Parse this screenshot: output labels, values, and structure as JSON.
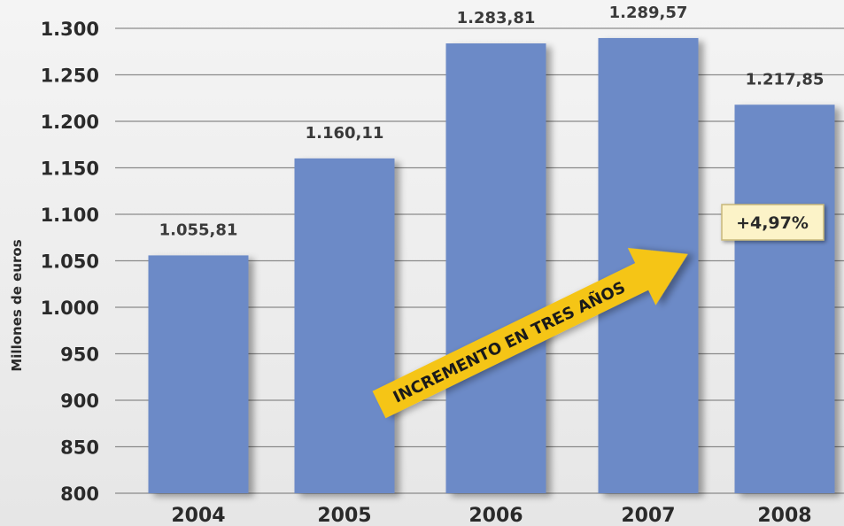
{
  "chart_data": {
    "type": "bar",
    "categories": [
      "2004",
      "2005",
      "2006",
      "2007",
      "2008"
    ],
    "values": [
      1055.81,
      1160.11,
      1283.81,
      1289.57,
      1217.85
    ],
    "data_labels": [
      "1.055,81",
      "1.160,11",
      "1.283,81",
      "1.289,57",
      "1.217,85"
    ],
    "ylabel": "Millones de euros",
    "ylim": [
      800,
      1300
    ],
    "yticks": [
      800,
      850,
      900,
      950,
      1000,
      1050,
      1100,
      1150,
      1200,
      1250,
      1300
    ],
    "ytick_labels": [
      "800",
      "850",
      "900",
      "950",
      "1.000",
      "1.050",
      "1.100",
      "1.150",
      "1.200",
      "1.250",
      "1.300"
    ],
    "grid": true,
    "bar_color": "#6c8ac7",
    "annotations": {
      "arrow_text": "INCREMENTO EN TRES AÑOS",
      "arrow_color": "#f5c518",
      "badge_text": "+4,97%",
      "badge_color": "#fcf3c8"
    }
  }
}
